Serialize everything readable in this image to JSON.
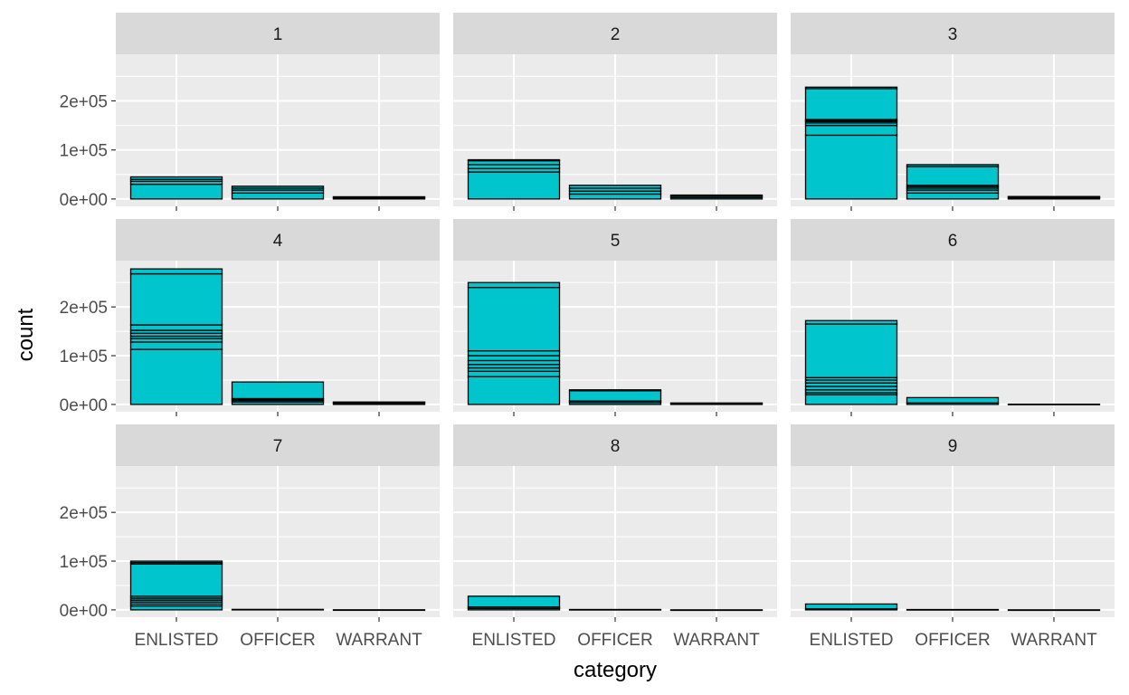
{
  "chart_data": {
    "type": "bar",
    "title": "",
    "xlabel": "category",
    "ylabel": "count",
    "categories": [
      "ENLISTED",
      "OFFICER",
      "WARRANT"
    ],
    "ylim": [
      -15000,
      295000
    ],
    "yticks": [
      0,
      100000,
      200000
    ],
    "ytick_labels": [
      "0e+00",
      "1e+05",
      "2e+05"
    ],
    "fill_color": "#00C5CD",
    "outline_color": "#000000",
    "panel_background": "#EBEBEB",
    "strip_background": "#D9D9D9",
    "grid_color": "#FFFFFF",
    "panels": [
      {
        "label": "1",
        "stacks": [
          [
            0,
            30000,
            36000,
            40000,
            45000
          ],
          [
            0,
            12000,
            18000,
            22000,
            26000
          ],
          [
            0,
            1500,
            3000,
            4500
          ]
        ]
      },
      {
        "label": "2",
        "stacks": [
          [
            0,
            55000,
            62000,
            70000,
            78000,
            80000
          ],
          [
            0,
            10000,
            16000,
            22000,
            28000
          ],
          [
            0,
            3000,
            6000,
            8000
          ]
        ]
      },
      {
        "label": "3",
        "stacks": [
          [
            0,
            130000,
            150000,
            155000,
            158000,
            160000,
            162000,
            225000,
            228000
          ],
          [
            0,
            12000,
            18000,
            22000,
            25000,
            28000,
            66000,
            70000
          ],
          [
            0,
            2000,
            4000,
            5000
          ]
        ]
      },
      {
        "label": "4",
        "stacks": [
          [
            0,
            113000,
            128000,
            135000,
            140000,
            146000,
            152000,
            163000,
            268000,
            278000
          ],
          [
            0,
            5000,
            8000,
            10000,
            12000,
            46000
          ],
          [
            0,
            2000,
            4000,
            5000
          ]
        ]
      },
      {
        "label": "5",
        "stacks": [
          [
            0,
            57000,
            68000,
            75000,
            82000,
            90000,
            100000,
            110000,
            240000,
            250000
          ],
          [
            0,
            4000,
            7000,
            28000,
            30000
          ],
          [
            0,
            1500,
            3000
          ]
        ]
      },
      {
        "label": "6",
        "stacks": [
          [
            0,
            20000,
            24000,
            30000,
            37000,
            44000,
            50000,
            55000,
            165000,
            172000
          ],
          [
            0,
            3000,
            14000
          ],
          [
            0,
            500
          ]
        ]
      },
      {
        "label": "7",
        "stacks": [
          [
            0,
            8000,
            12000,
            16000,
            20000,
            24000,
            28000,
            94000,
            97000,
            100000
          ],
          [
            0,
            1000
          ],
          [
            0,
            200
          ]
        ]
      },
      {
        "label": "8",
        "stacks": [
          [
            0,
            3000,
            6000,
            28000
          ],
          [
            0,
            800
          ],
          [
            0,
            100
          ]
        ]
      },
      {
        "label": "9",
        "stacks": [
          [
            0,
            2000,
            12000
          ],
          [
            0,
            700
          ],
          [
            0,
            100
          ]
        ]
      }
    ]
  }
}
